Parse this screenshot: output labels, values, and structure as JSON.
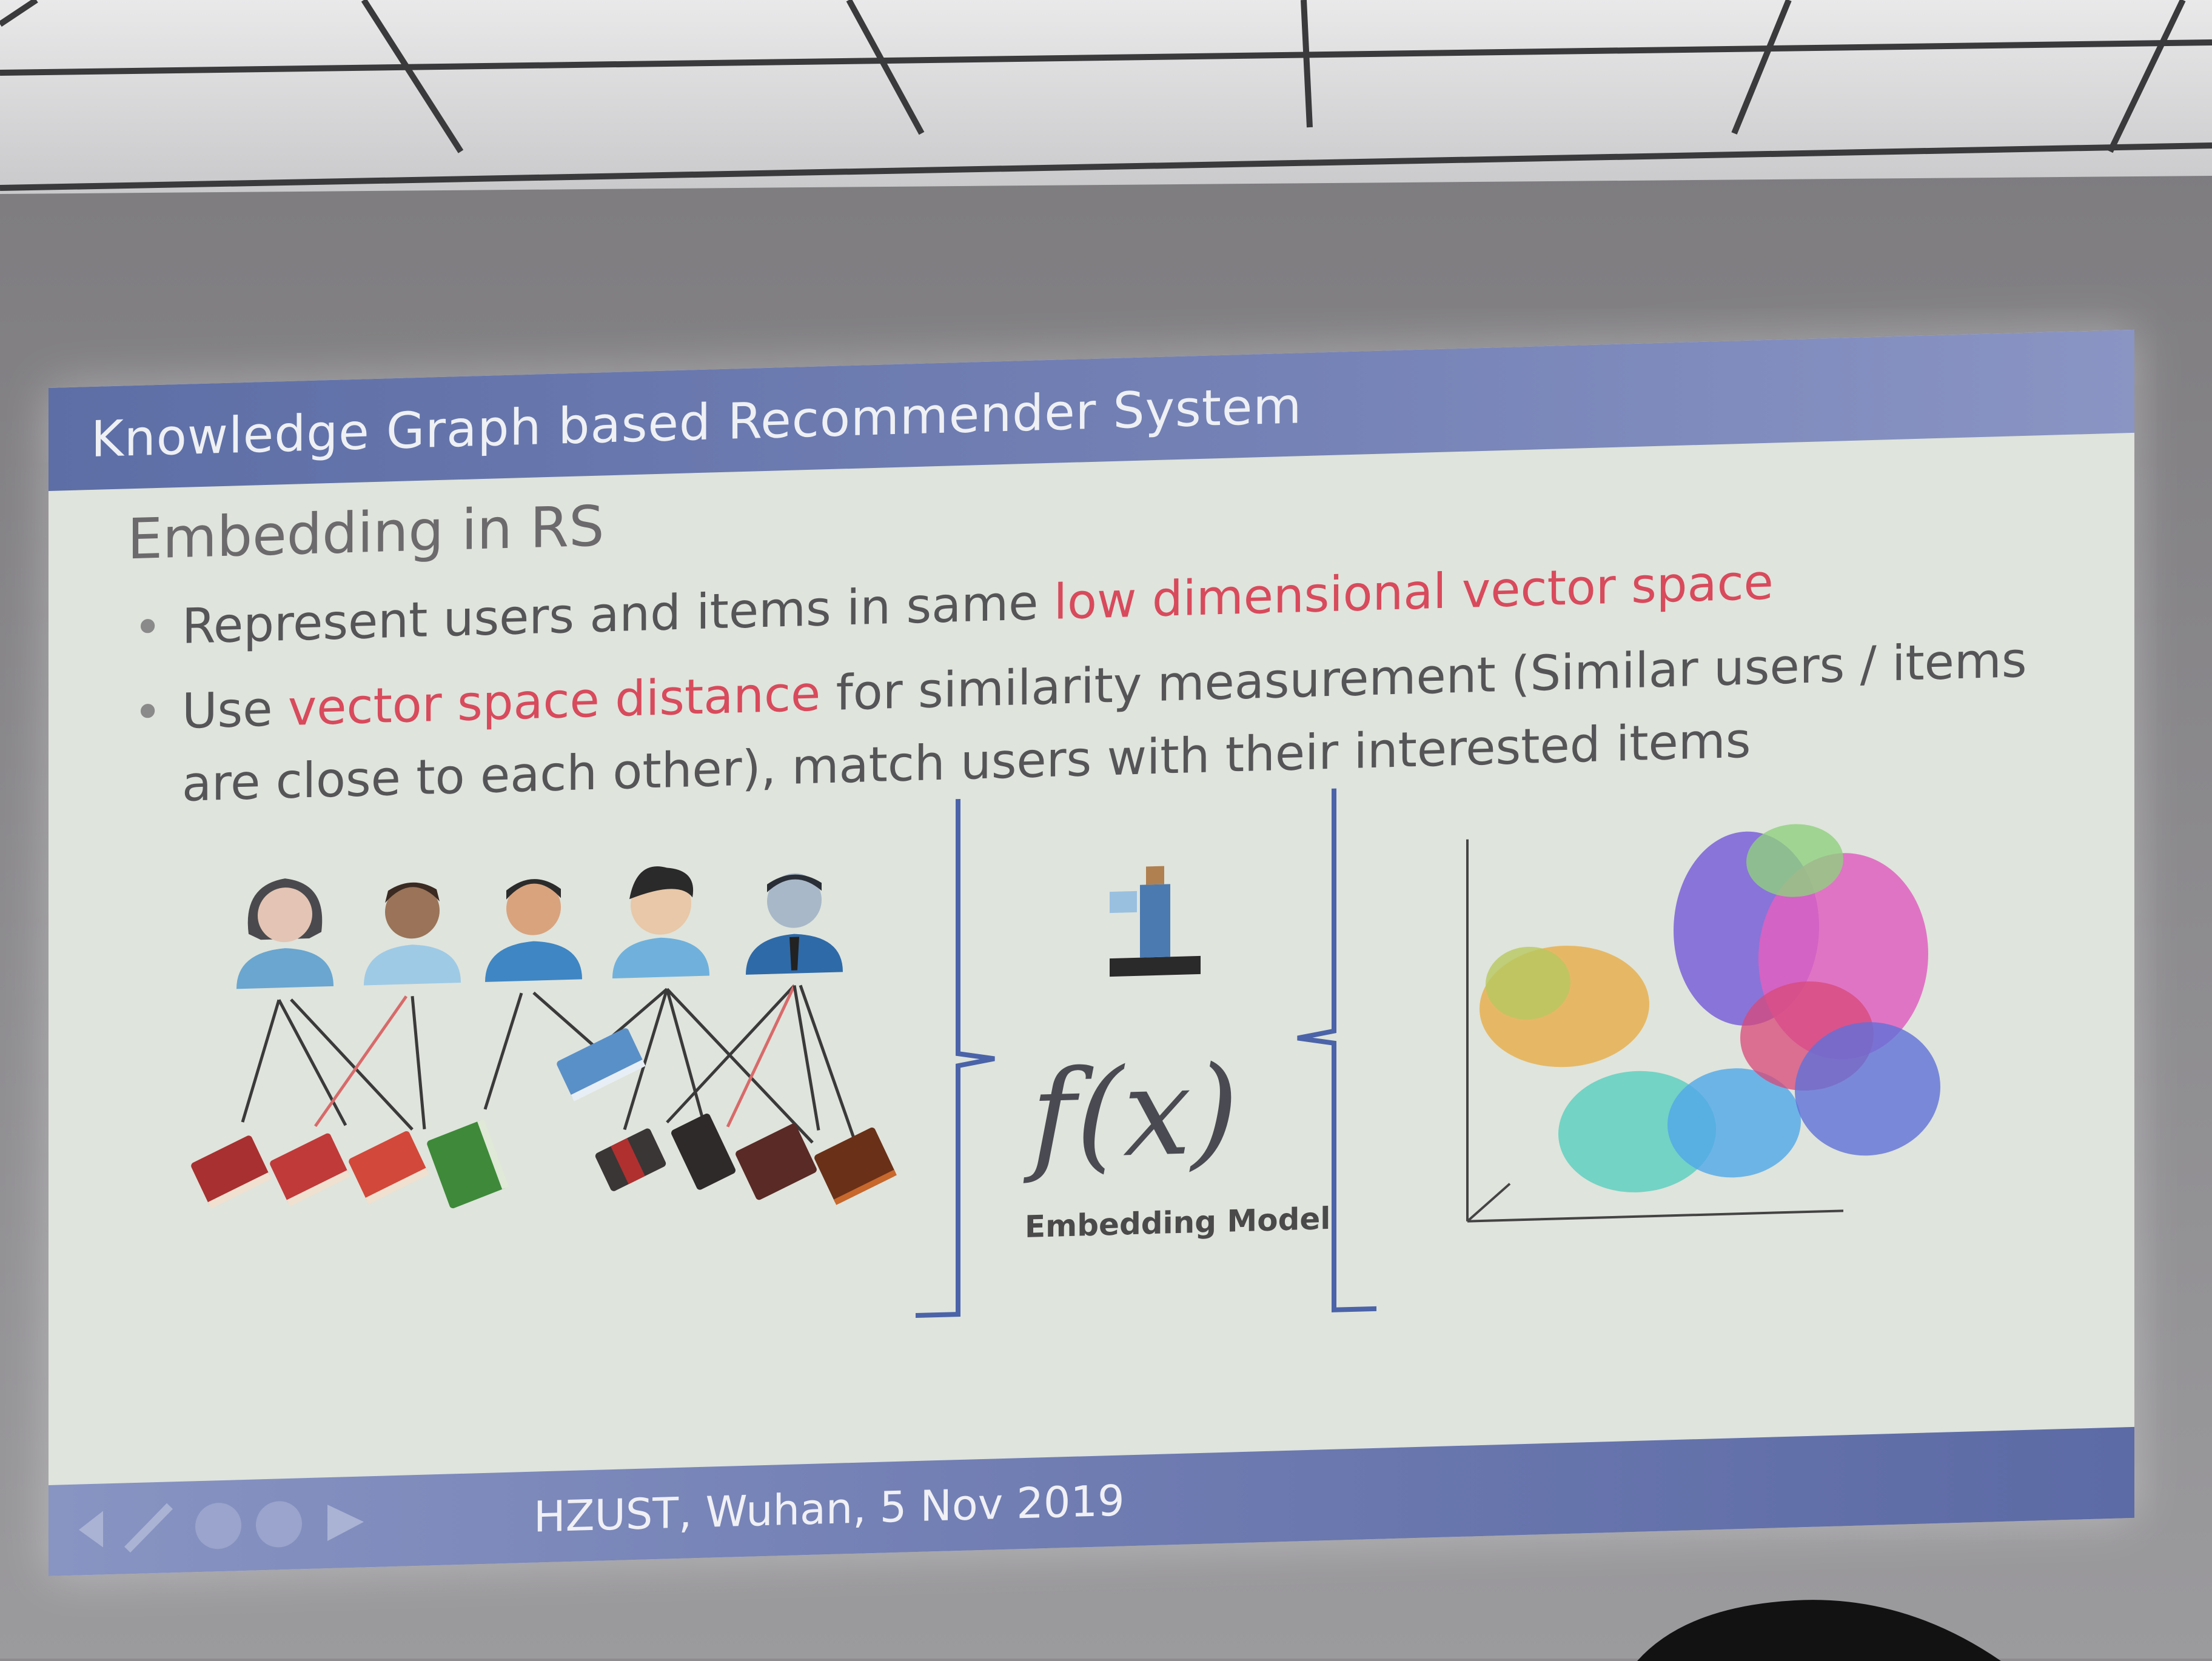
{
  "slide": {
    "header_title": "Knowledge Graph based Recommender System",
    "section_title": "Embedding in RS",
    "bullets": [
      {
        "before": "Represent users and items in same ",
        "highlight": "low dimensional vector space",
        "after": ""
      },
      {
        "before": "Use ",
        "highlight": "vector space distance",
        "after": " for similarity measurement (Similar users / items are close to each other), match users with their interested items"
      }
    ],
    "function_label": "f(x)",
    "function_caption": "Embedding Model",
    "footer": "HZUST, Wuhan, 5 Nov 2019"
  },
  "colors": {
    "header_bar": "#6a79b0",
    "highlight": "#d84a5c",
    "slide_bg": "#dfe4dc",
    "bracket": "#4b63a8"
  },
  "icons": {
    "users": [
      "user-female-icon",
      "user-male-icon",
      "user-male-icon",
      "user-male-icon",
      "user-male-icon"
    ],
    "items": [
      "book-icon"
    ],
    "nav": [
      "previous-icon",
      "pen-icon",
      "menu-icon",
      "menu-icon",
      "next-icon"
    ]
  }
}
